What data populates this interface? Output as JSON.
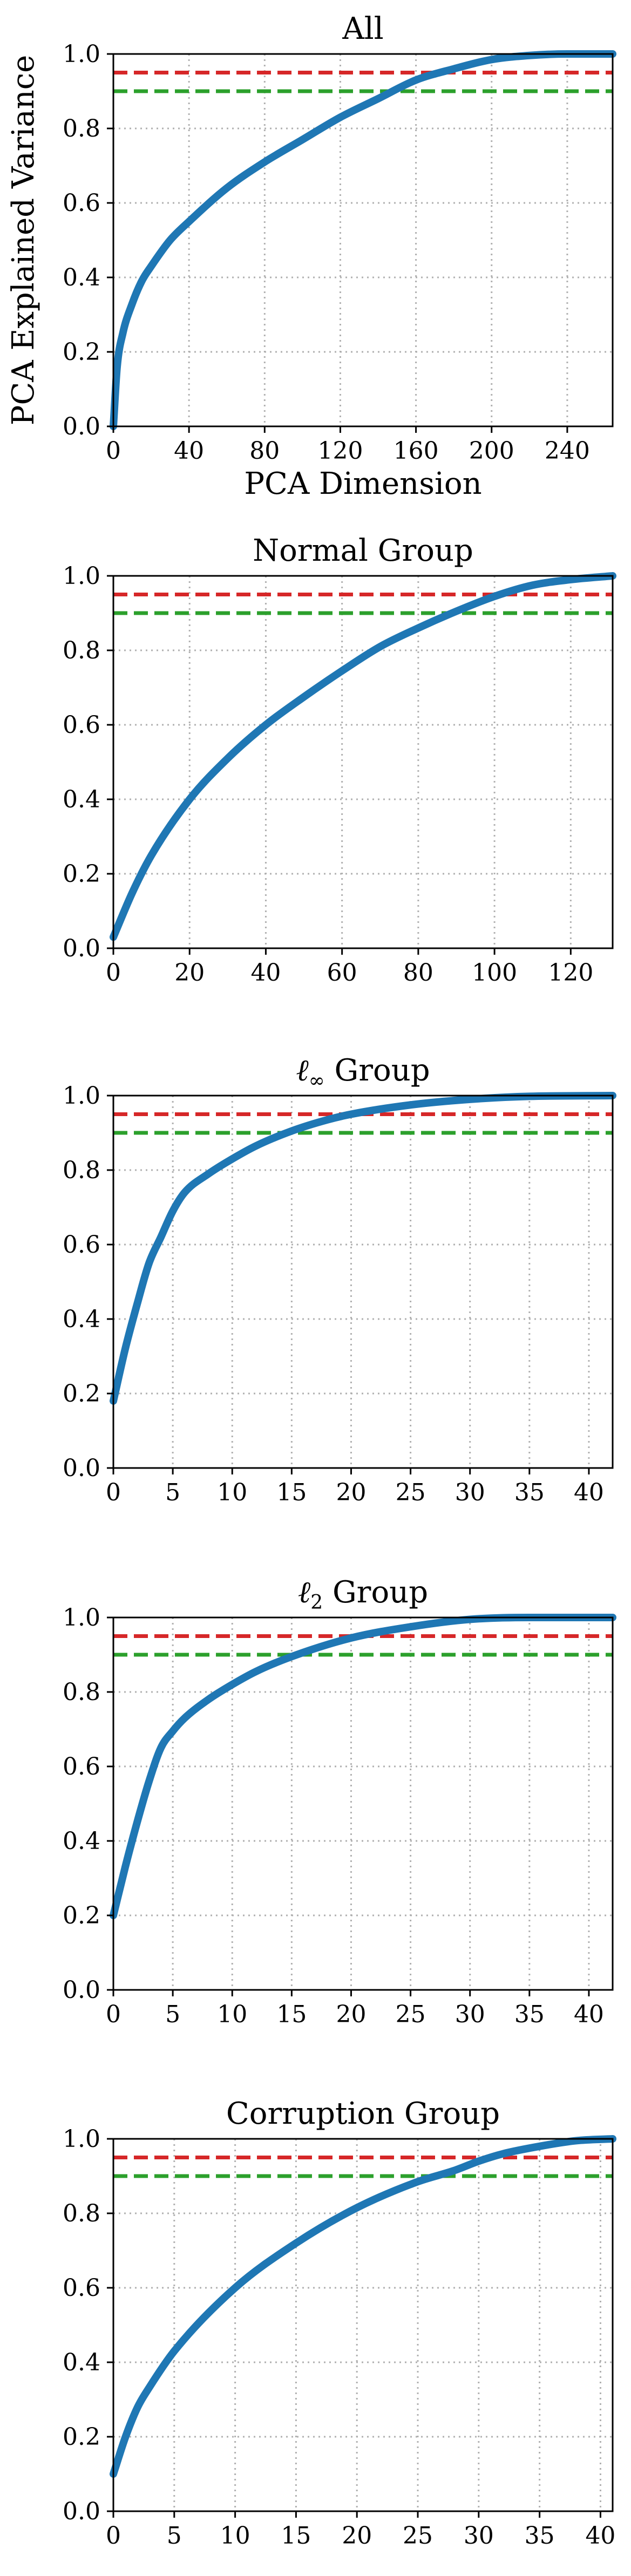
{
  "colors": {
    "curve": "#1f77b4",
    "threshold_95": "#d62728",
    "threshold_90": "#2ca02c",
    "grid": "#b0b0b0",
    "axes": "#000000"
  },
  "shared": {
    "ylabel": "PCA Explained Variance",
    "xlabel": "PCA Dimension",
    "yticks": [
      "0.0",
      "0.2",
      "0.4",
      "0.6",
      "0.8",
      "1.0"
    ]
  },
  "chart_data": [
    {
      "type": "line",
      "title": "All",
      "xlabel": "PCA Dimension",
      "ylabel": "PCA Explained Variance",
      "xlim": [
        0,
        264
      ],
      "ylim": [
        0,
        1
      ],
      "xticks": [
        0,
        40,
        80,
        120,
        160,
        200,
        240
      ],
      "yticks": [
        0,
        0.2,
        0.4,
        0.6,
        0.8,
        1.0
      ],
      "grid": true,
      "series": [
        {
          "x": [
            0,
            2,
            5,
            10,
            15,
            20,
            30,
            40,
            60,
            80,
            100,
            120,
            140,
            160,
            180,
            200,
            220,
            240,
            264
          ],
          "y": [
            0,
            0.16,
            0.25,
            0.33,
            0.39,
            0.43,
            0.5,
            0.55,
            0.64,
            0.71,
            0.77,
            0.83,
            0.88,
            0.93,
            0.96,
            0.985,
            0.996,
            1.0,
            1.0
          ]
        }
      ],
      "hlines": [
        {
          "y": 0.95,
          "color": "red",
          "style": "dashed"
        },
        {
          "y": 0.9,
          "color": "green",
          "style": "dashed"
        }
      ]
    },
    {
      "type": "line",
      "title": "Normal Group",
      "xlim": [
        0,
        131
      ],
      "ylim": [
        0,
        1
      ],
      "xticks": [
        0,
        20,
        40,
        60,
        80,
        100,
        120
      ],
      "yticks": [
        0,
        0.2,
        0.4,
        0.6,
        0.8,
        1.0
      ],
      "grid": true,
      "series": [
        {
          "x": [
            0,
            5,
            10,
            20,
            30,
            40,
            50,
            60,
            70,
            80,
            90,
            100,
            110,
            120,
            131
          ],
          "y": [
            0.03,
            0.15,
            0.25,
            0.4,
            0.51,
            0.6,
            0.675,
            0.745,
            0.81,
            0.86,
            0.905,
            0.945,
            0.975,
            0.99,
            1.0
          ]
        }
      ],
      "hlines": [
        {
          "y": 0.95,
          "color": "red",
          "style": "dashed"
        },
        {
          "y": 0.9,
          "color": "green",
          "style": "dashed"
        }
      ]
    },
    {
      "type": "line",
      "title": "ℓ∞ Group",
      "title_base": "ℓ",
      "title_sub": "∞",
      "title_rest": " Group",
      "xlim": [
        0,
        42
      ],
      "ylim": [
        0,
        1
      ],
      "xticks": [
        0,
        5,
        10,
        15,
        20,
        25,
        30,
        35,
        40
      ],
      "yticks": [
        0,
        0.2,
        0.4,
        0.6,
        0.8,
        1.0
      ],
      "grid": true,
      "series": [
        {
          "x": [
            0,
            1,
            2,
            3,
            4,
            5,
            6,
            8,
            10,
            12,
            15,
            18,
            20,
            25,
            30,
            35,
            42
          ],
          "y": [
            0.18,
            0.32,
            0.44,
            0.55,
            0.62,
            0.69,
            0.74,
            0.79,
            0.83,
            0.865,
            0.905,
            0.935,
            0.95,
            0.975,
            0.99,
            0.998,
            1.0
          ]
        }
      ],
      "hlines": [
        {
          "y": 0.95,
          "color": "red",
          "style": "dashed"
        },
        {
          "y": 0.9,
          "color": "green",
          "style": "dashed"
        }
      ]
    },
    {
      "type": "line",
      "title": "ℓ2 Group",
      "title_base": "ℓ",
      "title_sub": "2",
      "title_rest": " Group",
      "xlim": [
        0,
        42
      ],
      "ylim": [
        0,
        1
      ],
      "xticks": [
        0,
        5,
        10,
        15,
        20,
        25,
        30,
        35,
        40
      ],
      "yticks": [
        0,
        0.2,
        0.4,
        0.6,
        0.8,
        1.0
      ],
      "grid": true,
      "series": [
        {
          "x": [
            0,
            1,
            2,
            3,
            4,
            5,
            6,
            8,
            10,
            12,
            15,
            20,
            25,
            30,
            35,
            42
          ],
          "y": [
            0.2,
            0.33,
            0.45,
            0.56,
            0.65,
            0.695,
            0.73,
            0.78,
            0.82,
            0.855,
            0.895,
            0.945,
            0.975,
            0.995,
            1.0,
            1.0
          ]
        }
      ],
      "hlines": [
        {
          "y": 0.95,
          "color": "red",
          "style": "dashed"
        },
        {
          "y": 0.9,
          "color": "green",
          "style": "dashed"
        }
      ]
    },
    {
      "type": "line",
      "title": "Corruption Group",
      "xlim": [
        0,
        41
      ],
      "ylim": [
        0,
        1
      ],
      "xticks": [
        0,
        5,
        10,
        15,
        20,
        25,
        30,
        35,
        40
      ],
      "yticks": [
        0,
        0.2,
        0.4,
        0.6,
        0.8,
        1.0
      ],
      "grid": true,
      "series": [
        {
          "x": [
            0,
            1,
            2,
            3,
            5,
            10,
            15,
            20,
            25,
            28,
            30,
            32,
            35,
            38,
            41
          ],
          "y": [
            0.1,
            0.2,
            0.28,
            0.335,
            0.43,
            0.6,
            0.72,
            0.815,
            0.885,
            0.915,
            0.94,
            0.96,
            0.98,
            0.995,
            1.0
          ]
        }
      ],
      "hlines": [
        {
          "y": 0.95,
          "color": "red",
          "style": "dashed"
        },
        {
          "y": 0.9,
          "color": "green",
          "style": "dashed"
        }
      ]
    }
  ]
}
